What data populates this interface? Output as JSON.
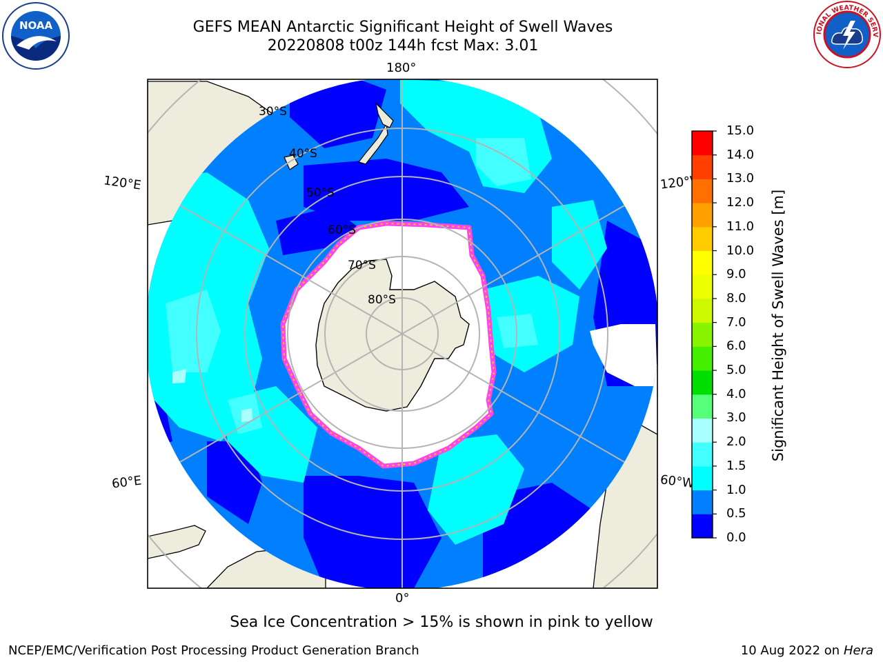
{
  "header": {
    "title_line1": "GEFS MEAN Antarctic Significant Height of Swell Waves",
    "title_line2": "20220808 t00z 144h fcst   Max: 3.01"
  },
  "logos": {
    "left": {
      "text": "NOAA",
      "icon": "noaa-logo-icon"
    },
    "right": {
      "text": "NATIONAL WEATHER SERVICE",
      "icon": "nws-logo-icon"
    }
  },
  "map": {
    "projection": "south-polar-stereographic",
    "longitude_labels": {
      "top": "180°",
      "bottom": "0°",
      "upper_left": "120°E",
      "upper_right": "120°W",
      "lower_left": "60°E",
      "lower_right": "60°W"
    },
    "latitude_labels": [
      "30°S",
      "40°S",
      "50°S",
      "60°S",
      "70°S",
      "80°S"
    ],
    "colors": {
      "land": "#eeecdc",
      "sea_ice": "#ffffff",
      "ice_edge_pink": "#ff44ee",
      "ice_edge_yellow": "#ffd200",
      "grid": "#b4b4b4"
    }
  },
  "colorbar": {
    "label": "Significant Height of Swell Waves [m]",
    "ticks": [
      "0.0",
      "0.5",
      "1.0",
      "1.5",
      "2.0",
      "3.0",
      "4.0",
      "5.0",
      "6.0",
      "7.0",
      "8.0",
      "9.0",
      "10.0",
      "11.0",
      "12.0",
      "13.0",
      "14.0",
      "15.0"
    ],
    "colors": [
      "#0000ff",
      "#0080ff",
      "#00ffff",
      "#44ffff",
      "#aaffff",
      "#55ff77",
      "#00dd00",
      "#44ee00",
      "#88f400",
      "#ccf800",
      "#ecff00",
      "#ffff00",
      "#ffcc00",
      "#ffa000",
      "#ff7000",
      "#ff4000",
      "#ff0000"
    ]
  },
  "chart_data": {
    "type": "heatmap",
    "variable": "Significant Height of Swell Waves",
    "units": "m",
    "max_value": 3.01,
    "scale_range": [
      0,
      15
    ],
    "dominant_ranges_m": [
      "0.0-0.5",
      "0.5-1.0",
      "1.0-1.5",
      "1.5-2.0",
      "2.0-3.0"
    ],
    "sea_ice_note": "Sea Ice Concentration > 15% is shown in pink to yellow"
  },
  "footer": {
    "left": "NCEP/EMC/Verification Post Processing Product Generation Branch",
    "right_date": "10 Aug 2022 on",
    "right_machine": "Hera"
  }
}
